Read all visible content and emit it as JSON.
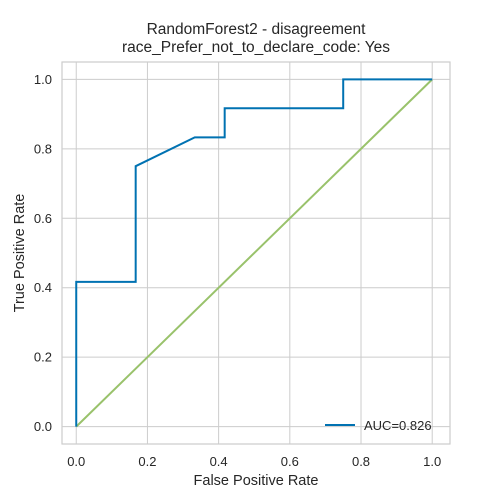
{
  "chart_data": {
    "type": "line",
    "title": "RandomForest2 - disagreement",
    "subtitle": "race_Prefer_not_to_declare_code: Yes",
    "xlabel": "False Positive Rate",
    "ylabel": "True Positive Rate",
    "xlim": [
      -0.04,
      1.05
    ],
    "ylim": [
      -0.05,
      1.05
    ],
    "xticks": [
      "0.0",
      "0.2",
      "0.4",
      "0.6",
      "0.8",
      "1.0"
    ],
    "yticks": [
      "0.0",
      "0.2",
      "0.4",
      "0.6",
      "0.8",
      "1.0"
    ],
    "grid": true,
    "legend_position": "lower-right",
    "series": [
      {
        "name": "AUC=0.826",
        "color": "#0072B2",
        "x": [
          0.0,
          0.0,
          0.0,
          0.167,
          0.167,
          0.333,
          0.417,
          0.417,
          0.75,
          0.75,
          1.0
        ],
        "y": [
          0.0,
          0.083,
          0.417,
          0.417,
          0.75,
          0.833,
          0.833,
          0.917,
          0.917,
          1.0,
          1.0
        ]
      },
      {
        "color": "#99C26B",
        "x": [
          0.0,
          1.0
        ],
        "y": [
          0.0,
          1.0
        ]
      }
    ]
  }
}
